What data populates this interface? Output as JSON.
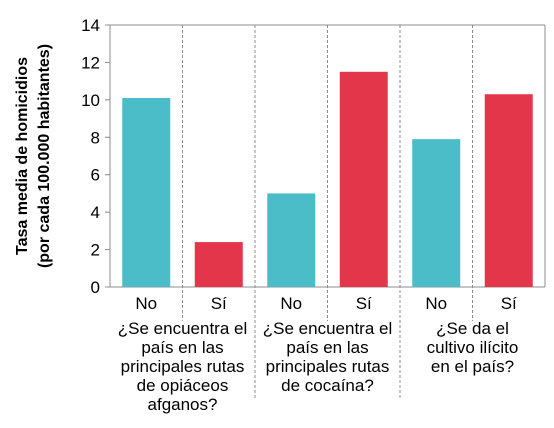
{
  "chart_data": {
    "type": "bar",
    "title": "",
    "ylabel_lines": [
      "Tasa media de homicidios",
      "(por cada 100.000 habitantes)"
    ],
    "ylim": [
      0,
      14
    ],
    "yticks": [
      "0",
      "2",
      "4",
      "6",
      "8",
      "10",
      "12",
      "14"
    ],
    "grid": "dashed vertical separators between groups",
    "legend": "none",
    "categories": [
      "No",
      "Sí",
      "No",
      "Sí",
      "No",
      "Sí"
    ],
    "values": [
      10.1,
      2.4,
      5.0,
      11.5,
      7.9,
      10.3
    ],
    "colors": [
      "#4bbdc9",
      "#e3364b",
      "#4bbdc9",
      "#e3364b",
      "#4bbdc9",
      "#e3364b"
    ],
    "groups": [
      {
        "lines": [
          "¿Se encuentra el",
          "país en las",
          "principales rutas",
          "de opiáceos",
          "afganos?"
        ]
      },
      {
        "lines": [
          "¿Se encuentra el",
          "país en las",
          "principales rutas",
          "de cocaína?"
        ]
      },
      {
        "lines": [
          "¿Se da el",
          "cultivo ilícito",
          "en el país?"
        ]
      }
    ]
  }
}
